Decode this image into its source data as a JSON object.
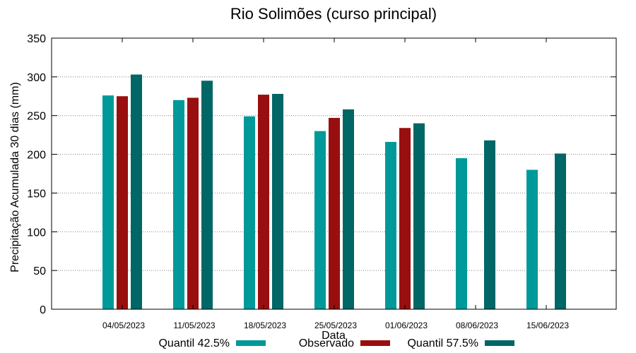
{
  "chart_data": {
    "type": "bar",
    "title": "Rio Solimões (curso principal)",
    "xlabel": "Data",
    "ylabel": "Precipitação Acumulada 30 dias (mm)",
    "ylim": [
      0,
      350
    ],
    "yticks": [
      0,
      50,
      100,
      150,
      200,
      250,
      300,
      350
    ],
    "grid": true,
    "legend_position": "bottom",
    "categories": [
      "04/05/2023",
      "11/05/2023",
      "18/05/2023",
      "25/05/2023",
      "01/06/2023",
      "08/06/2023",
      "15/06/2023"
    ],
    "series": [
      {
        "name": "Quantil 42.5%",
        "color": "#009999",
        "values": [
          276,
          270,
          249,
          230,
          216,
          195,
          180
        ]
      },
      {
        "name": "Observado",
        "color": "#990f0f",
        "values": [
          275,
          273,
          277,
          247,
          234,
          null,
          null
        ]
      },
      {
        "name": "Quantil 57.5%",
        "color": "#006666",
        "values": [
          303,
          295,
          278,
          258,
          240,
          218,
          201
        ]
      }
    ]
  }
}
